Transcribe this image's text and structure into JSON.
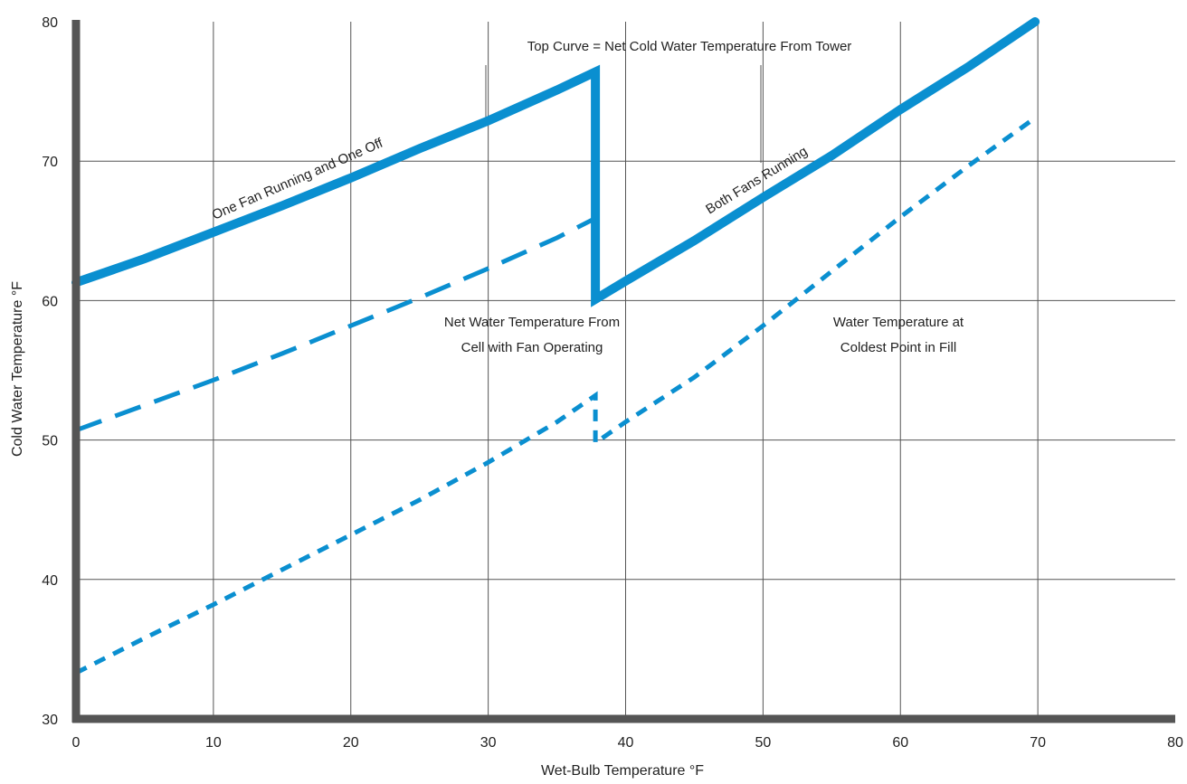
{
  "chart_data": {
    "type": "line",
    "xlabel": "Wet-Bulb Temperature °F",
    "ylabel": "Cold Water Temperature °F",
    "xlim": [
      0,
      80
    ],
    "ylim": [
      30,
      80
    ],
    "x_ticks": [
      0,
      10,
      20,
      30,
      40,
      50,
      60,
      70,
      80
    ],
    "y_ticks": [
      30,
      40,
      50,
      60,
      70,
      80
    ],
    "grid": true,
    "accent_color": "#0a8fd0",
    "series": [
      {
        "style": "solid-thick",
        "points": [
          [
            0,
            61.3
          ],
          [
            5,
            63.0
          ],
          [
            10,
            64.9
          ],
          [
            15,
            66.8
          ],
          [
            20,
            68.8
          ],
          [
            25,
            70.9
          ],
          [
            30,
            72.9
          ],
          [
            35,
            75.1
          ],
          [
            37.8,
            76.4
          ],
          [
            37.8,
            60.1
          ],
          [
            40,
            61.4
          ],
          [
            45,
            64.3
          ],
          [
            50,
            67.4
          ],
          [
            55,
            70.4
          ],
          [
            60,
            73.7
          ],
          [
            65,
            76.8
          ],
          [
            69.8,
            80.0
          ]
        ]
      },
      {
        "style": "long-dash",
        "points": [
          [
            0,
            50.7
          ],
          [
            5,
            52.5
          ],
          [
            10,
            54.3
          ],
          [
            15,
            56.2
          ],
          [
            20,
            58.2
          ],
          [
            25,
            60.2
          ],
          [
            30,
            62.3
          ],
          [
            35,
            64.5
          ],
          [
            37.8,
            65.9
          ]
        ]
      },
      {
        "style": "short-dash",
        "points": [
          [
            0,
            33.3
          ],
          [
            5,
            35.8
          ],
          [
            10,
            38.2
          ],
          [
            15,
            40.7
          ],
          [
            20,
            43.2
          ],
          [
            25,
            45.7
          ],
          [
            30,
            48.4
          ],
          [
            35,
            51.3
          ],
          [
            37.8,
            53.2
          ],
          [
            37.8,
            49.8
          ],
          [
            40,
            51.3
          ],
          [
            45,
            54.5
          ],
          [
            50,
            58.2
          ],
          [
            55,
            62.1
          ],
          [
            60,
            66.0
          ],
          [
            65,
            69.7
          ],
          [
            69.8,
            73.1
          ]
        ]
      }
    ],
    "annotations": [
      {
        "id": "top_curve",
        "text": "Top Curve = Net Cold Water Temperature From Tower"
      },
      {
        "id": "one_fan",
        "text": "One Fan Running and One Off"
      },
      {
        "id": "both_fans",
        "text": "Both Fans Running"
      },
      {
        "id": "net_cell_1",
        "text": "Net Water Temperature From"
      },
      {
        "id": "net_cell_2",
        "text": "Cell with Fan Operating"
      },
      {
        "id": "coldest_1",
        "text": "Water Temperature at"
      },
      {
        "id": "coldest_2",
        "text": "Coldest Point in Fill"
      }
    ]
  }
}
